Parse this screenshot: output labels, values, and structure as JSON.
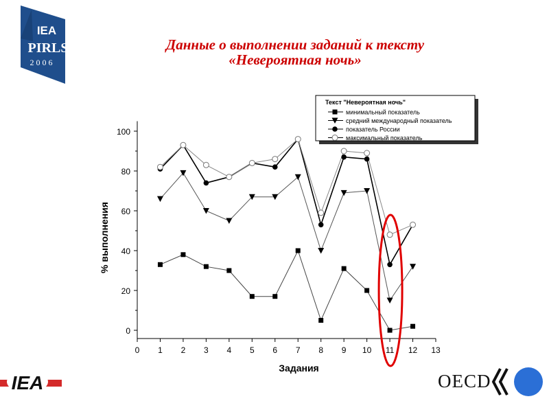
{
  "header": {
    "title_line1": "Данные о выполнении заданий к тексту",
    "title_line2": "«Невероятная ночь»"
  },
  "logos": {
    "pirls_iea": "IEA",
    "pirls_name": "PIRLS",
    "pirls_year": "2 0 0 6",
    "iea_bottom": "IEA",
    "oecd": "OECD"
  },
  "colors": {
    "title": "#cc0000",
    "pirls_blue": "#1f4e8c",
    "iea_red": "#d42a2a",
    "oecd_blue": "#2b6fd6",
    "highlight_ellipse": "#e00000"
  },
  "chart_data": {
    "type": "line",
    "xlabel": "Задания",
    "ylabel": "% выполнения",
    "xlim": [
      0,
      13
    ],
    "ylim": [
      0,
      105
    ],
    "xticks": [
      0,
      1,
      2,
      3,
      4,
      5,
      6,
      7,
      8,
      9,
      10,
      11,
      12,
      13
    ],
    "yticks": [
      0,
      20,
      40,
      60,
      80,
      100
    ],
    "legend_title": "Текст \"Невероятная ночь\"",
    "legend_position": "top-right",
    "grid": false,
    "x": [
      1,
      2,
      3,
      4,
      5,
      6,
      7,
      8,
      9,
      10,
      11,
      12
    ],
    "series": [
      {
        "name": "минимальный показатель",
        "marker": "square",
        "color": "#000000",
        "values": [
          33,
          38,
          32,
          30,
          17,
          17,
          40,
          5,
          31,
          20,
          0,
          2
        ]
      },
      {
        "name": "средний международный показатель",
        "marker": "triangle-down",
        "color": "#000000",
        "values": [
          66,
          79,
          60,
          55,
          67,
          67,
          77,
          40,
          69,
          70,
          15,
          32
        ]
      },
      {
        "name": "показатель России",
        "marker": "circle-filled",
        "color": "#000000",
        "values": [
          81,
          93,
          74,
          77,
          84,
          82,
          96,
          53,
          87,
          86,
          33,
          53
        ]
      },
      {
        "name": "максимальный показатель",
        "marker": "circle-open",
        "color": "#000000",
        "values": [
          82,
          93,
          83,
          77,
          84,
          86,
          96,
          59,
          90,
          89,
          48,
          53
        ]
      }
    ],
    "highlight": {
      "x": 11,
      "shape": "ellipse"
    }
  }
}
